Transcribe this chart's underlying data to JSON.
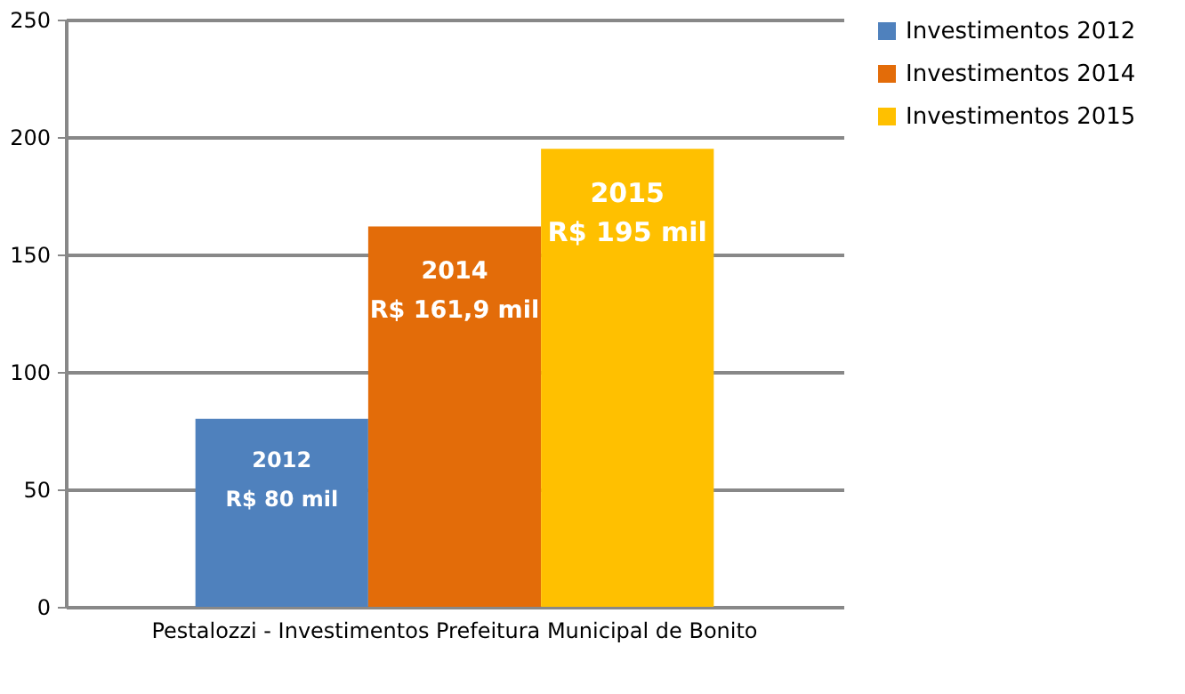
{
  "chart_data": {
    "type": "bar",
    "categories": [
      "Pestalozzi  - Investimentos Prefeitura Municipal de Bonito"
    ],
    "series": [
      {
        "name": "Investimentos 2012",
        "color": "#4f81bd",
        "values": [
          80
        ],
        "value_labels": [
          "2012\nR$ 80 mil"
        ]
      },
      {
        "name": "Investimentos 2014",
        "color": "#e36c09",
        "values": [
          161.9
        ],
        "value_labels": [
          "2014\nR$ 161,9 mil"
        ]
      },
      {
        "name": "Investimentos 2015",
        "color": "#ffc000",
        "values": [
          195
        ],
        "value_labels": [
          "2015\nR$ 195 mil"
        ]
      }
    ],
    "ylim": [
      0,
      250
    ],
    "yticks": [
      0,
      50,
      100,
      150,
      200,
      250
    ],
    "grid": "y",
    "legend": "right"
  }
}
